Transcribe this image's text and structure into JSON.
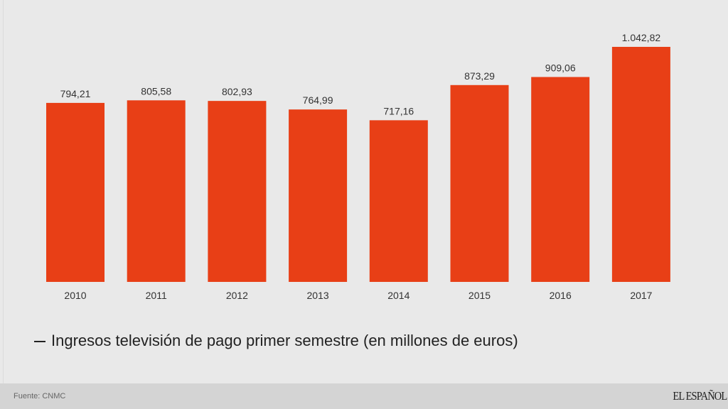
{
  "chart_data": {
    "type": "bar",
    "categories": [
      "2010",
      "2011",
      "2012",
      "2013",
      "2014",
      "2015",
      "2016",
      "2017"
    ],
    "values": [
      794.21,
      805.58,
      802.93,
      764.99,
      717.16,
      873.29,
      909.06,
      1042.82
    ],
    "value_labels": [
      "794,21",
      "805,58",
      "802,93",
      "764,99",
      "717,16",
      "873,29",
      "909,06",
      "1.042,82"
    ],
    "series": [
      {
        "name": "Ingresos televisión de pago primer semestre (en millones de euros)",
        "color": "#e83f16"
      }
    ],
    "title": "",
    "xlabel": "",
    "ylabel": "",
    "ylim": [
      0,
      1042.82
    ],
    "grid": false,
    "legend_position": "bottom-left"
  },
  "legend": {
    "label": "Ingresos televisión de pago primer semestre (en millones de euros)"
  },
  "footer": {
    "source": "Fuente: CNMC",
    "logo": "EL ESPAÑOL"
  }
}
